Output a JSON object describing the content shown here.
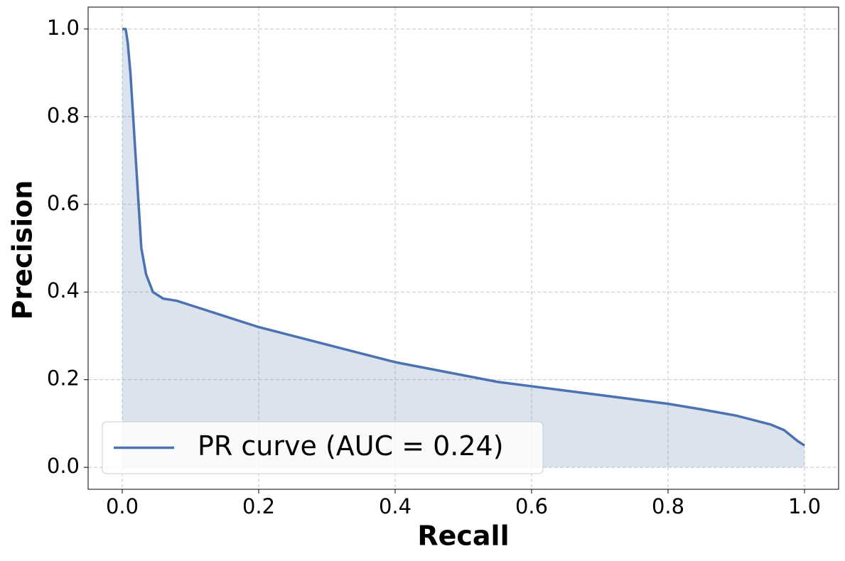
{
  "chart_data": {
    "type": "line",
    "area": true,
    "x_label": "Recall",
    "y_label": "Precision",
    "x": [
      0.0,
      0.005,
      0.008,
      0.012,
      0.016,
      0.02,
      0.024,
      0.028,
      0.035,
      0.045,
      0.06,
      0.08,
      0.1,
      0.15,
      0.2,
      0.25,
      0.3,
      0.35,
      0.4,
      0.45,
      0.5,
      0.55,
      0.6,
      0.65,
      0.7,
      0.75,
      0.8,
      0.85,
      0.9,
      0.95,
      0.97,
      0.99,
      1.0
    ],
    "series": [
      {
        "name": "PR curve (AUC = 0.24)",
        "color": "#4c72b0",
        "values": [
          1.0,
          1.0,
          0.97,
          0.9,
          0.8,
          0.7,
          0.6,
          0.5,
          0.44,
          0.4,
          0.385,
          0.38,
          0.37,
          0.345,
          0.32,
          0.3,
          0.28,
          0.26,
          0.24,
          0.225,
          0.21,
          0.195,
          0.185,
          0.175,
          0.165,
          0.155,
          0.145,
          0.132,
          0.118,
          0.098,
          0.085,
          0.06,
          0.05
        ]
      }
    ],
    "xlim": [
      -0.05,
      1.05
    ],
    "ylim": [
      -0.05,
      1.05
    ],
    "xticks": [
      {
        "value": 0,
        "label": "0.0"
      },
      0.2,
      0.4,
      0.6,
      0.8,
      {
        "value": 1,
        "label": "1.0"
      }
    ],
    "yticks": [
      {
        "value": 0,
        "label": "0.0"
      },
      0.2,
      0.4,
      0.6,
      0.8,
      {
        "value": 1,
        "label": "1.0"
      }
    ],
    "grid": true,
    "legend": "lower left"
  }
}
